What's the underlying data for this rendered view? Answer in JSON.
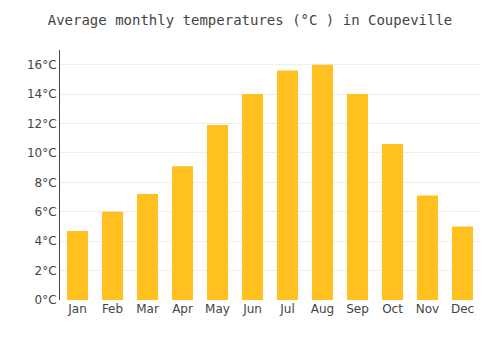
{
  "chart_data": {
    "type": "bar",
    "title": "Average monthly temperatures (°C ) in Coupeville",
    "categories": [
      "Jan",
      "Feb",
      "Mar",
      "Apr",
      "May",
      "Jun",
      "Jul",
      "Aug",
      "Sep",
      "Oct",
      "Nov",
      "Dec"
    ],
    "values": [
      4.7,
      6.0,
      7.2,
      9.1,
      11.9,
      14.0,
      15.6,
      16.0,
      14.0,
      10.6,
      7.1,
      5.0
    ],
    "color": "#FFC020",
    "ylim": [
      0,
      17
    ],
    "yticks": [
      {
        "value": 0,
        "label": "0°C"
      },
      {
        "value": 2,
        "label": "2°C"
      },
      {
        "value": 4,
        "label": "4°C"
      },
      {
        "value": 6,
        "label": "6°C"
      },
      {
        "value": 8,
        "label": "8°C"
      },
      {
        "value": 10,
        "label": "10°C"
      },
      {
        "value": 12,
        "label": "12°C"
      },
      {
        "value": 14,
        "label": "14°C"
      },
      {
        "value": 16,
        "label": "16°C"
      }
    ],
    "grid": true
  }
}
